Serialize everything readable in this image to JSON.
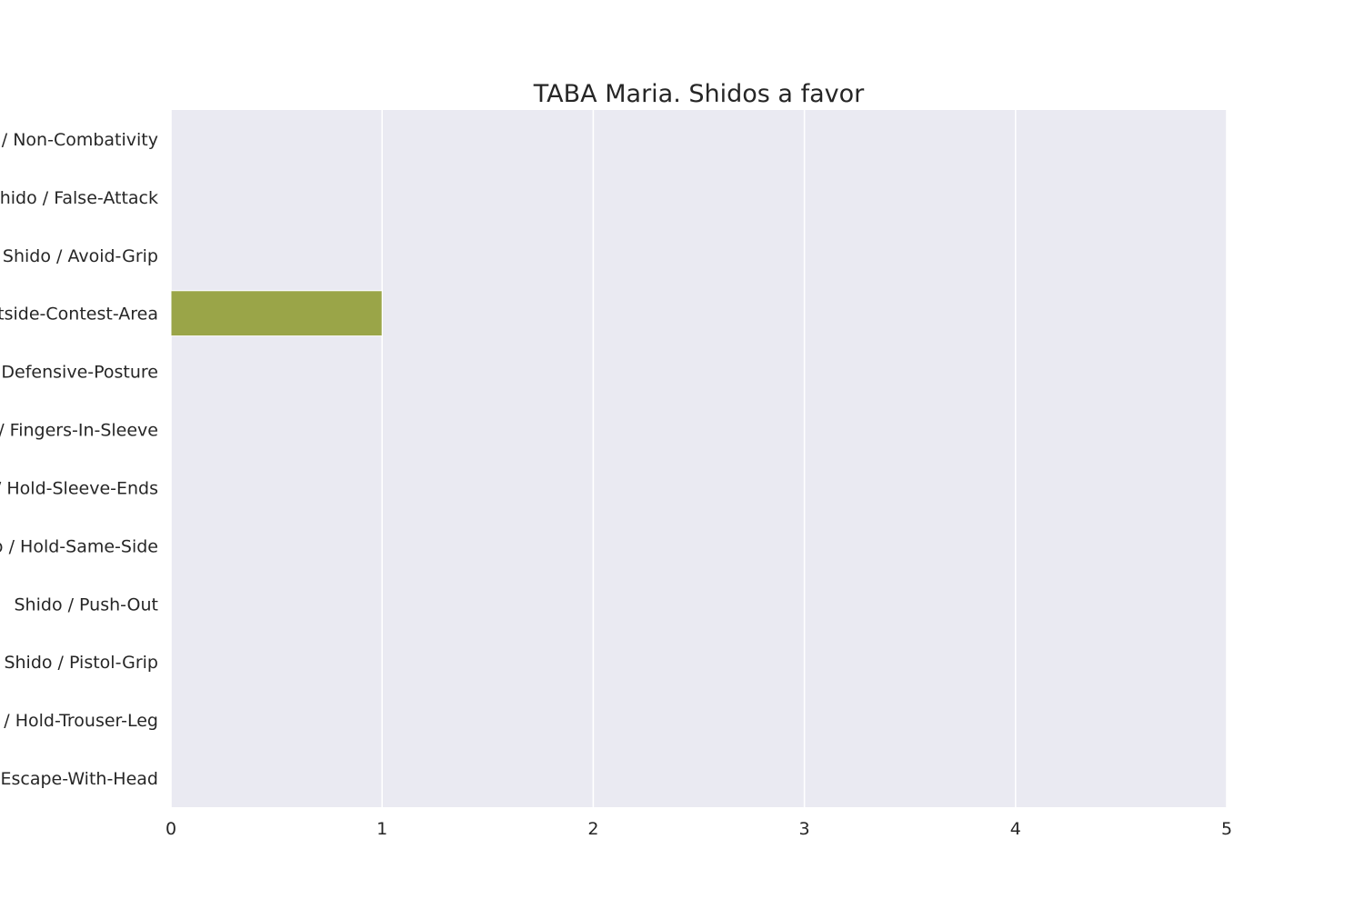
{
  "chart_data": {
    "type": "bar",
    "orientation": "horizontal",
    "title": "TABA Maria. Shidos a favor",
    "xlabel": "",
    "ylabel": "",
    "xlim": [
      0,
      5
    ],
    "xticks": [
      0,
      1,
      2,
      3,
      4,
      5
    ],
    "grid": true,
    "categories": [
      "Shido / Non-Combativity",
      "Shido / False-Attack",
      "Shido / Avoid-Grip",
      "Shido / Outside-Contest-Area",
      "Shido / Defensive-Posture",
      "Shido / Fingers-In-Sleeve",
      "Shido / Hold-Sleeve-Ends",
      "Shido / Hold-Same-Side",
      "Shido / Push-Out",
      "Shido / Pistol-Grip",
      "Shido / Hold-Trouser-Leg",
      "Shido / Escape-With-Head"
    ],
    "values": [
      0,
      0,
      0,
      1,
      0,
      0,
      0,
      0,
      0,
      0,
      0,
      0
    ],
    "bar_color": "#9aa548",
    "plot_background": "#eaeaf2",
    "gridline_color": "#ffffff"
  }
}
